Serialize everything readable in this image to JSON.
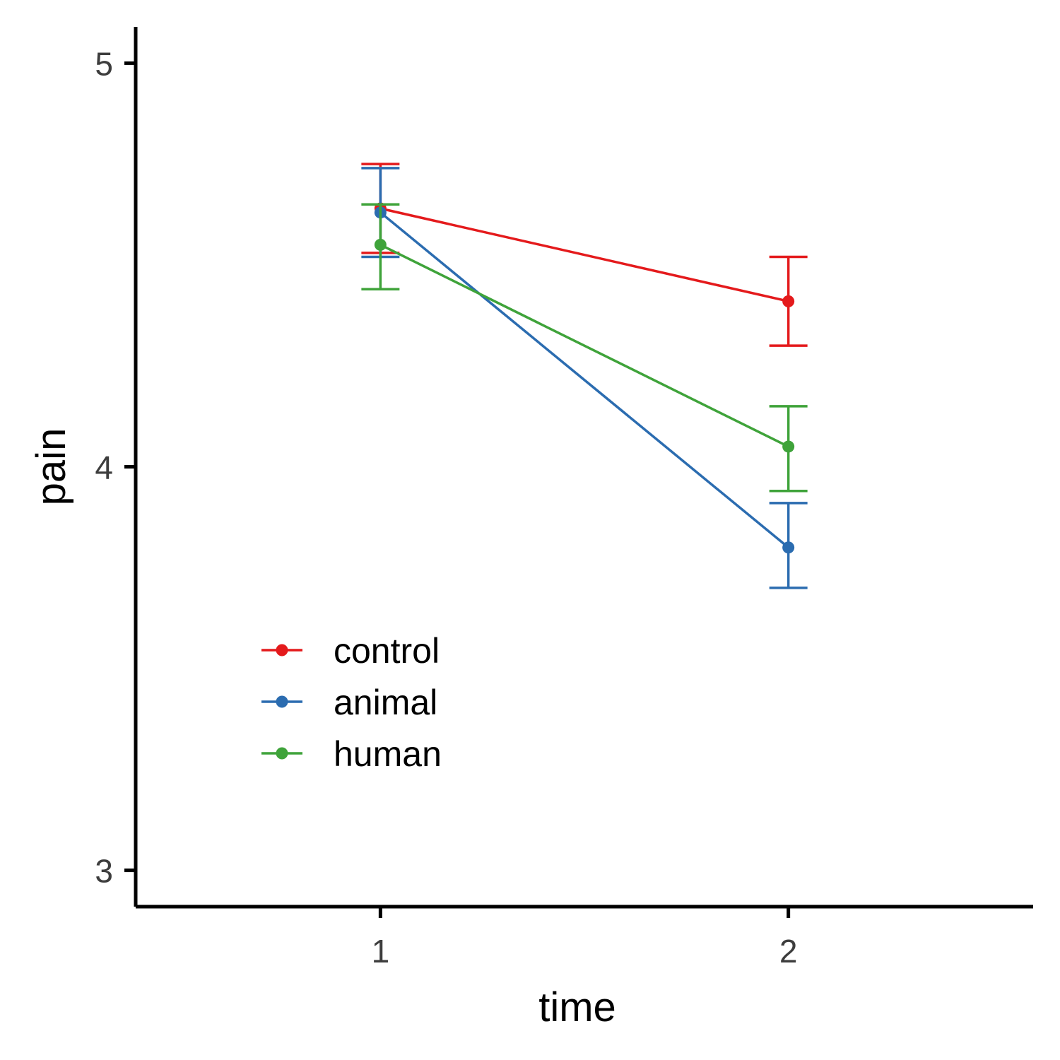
{
  "chart_data": {
    "type": "line",
    "xlabel": "time",
    "ylabel": "pain",
    "x": [
      1,
      2
    ],
    "xlim": [
      0.4,
      2.6
    ],
    "ylim": [
      2.91,
      5.09
    ],
    "xticks": [
      1,
      2
    ],
    "yticks": [
      3,
      4,
      5
    ],
    "grid": false,
    "legend_position": "bottom-left inside",
    "series": [
      {
        "name": "control",
        "color": "#E41A1C",
        "values": [
          4.64,
          4.41
        ],
        "lower": [
          4.53,
          4.3
        ],
        "upper": [
          4.75,
          4.52
        ]
      },
      {
        "name": "animal",
        "color": "#2B6CB0",
        "values": [
          4.63,
          3.8
        ],
        "lower": [
          4.52,
          3.7
        ],
        "upper": [
          4.74,
          3.91
        ]
      },
      {
        "name": "human",
        "color": "#3FA33A",
        "values": [
          4.55,
          4.05
        ],
        "lower": [
          4.44,
          3.94
        ],
        "upper": [
          4.65,
          4.15
        ]
      }
    ]
  }
}
